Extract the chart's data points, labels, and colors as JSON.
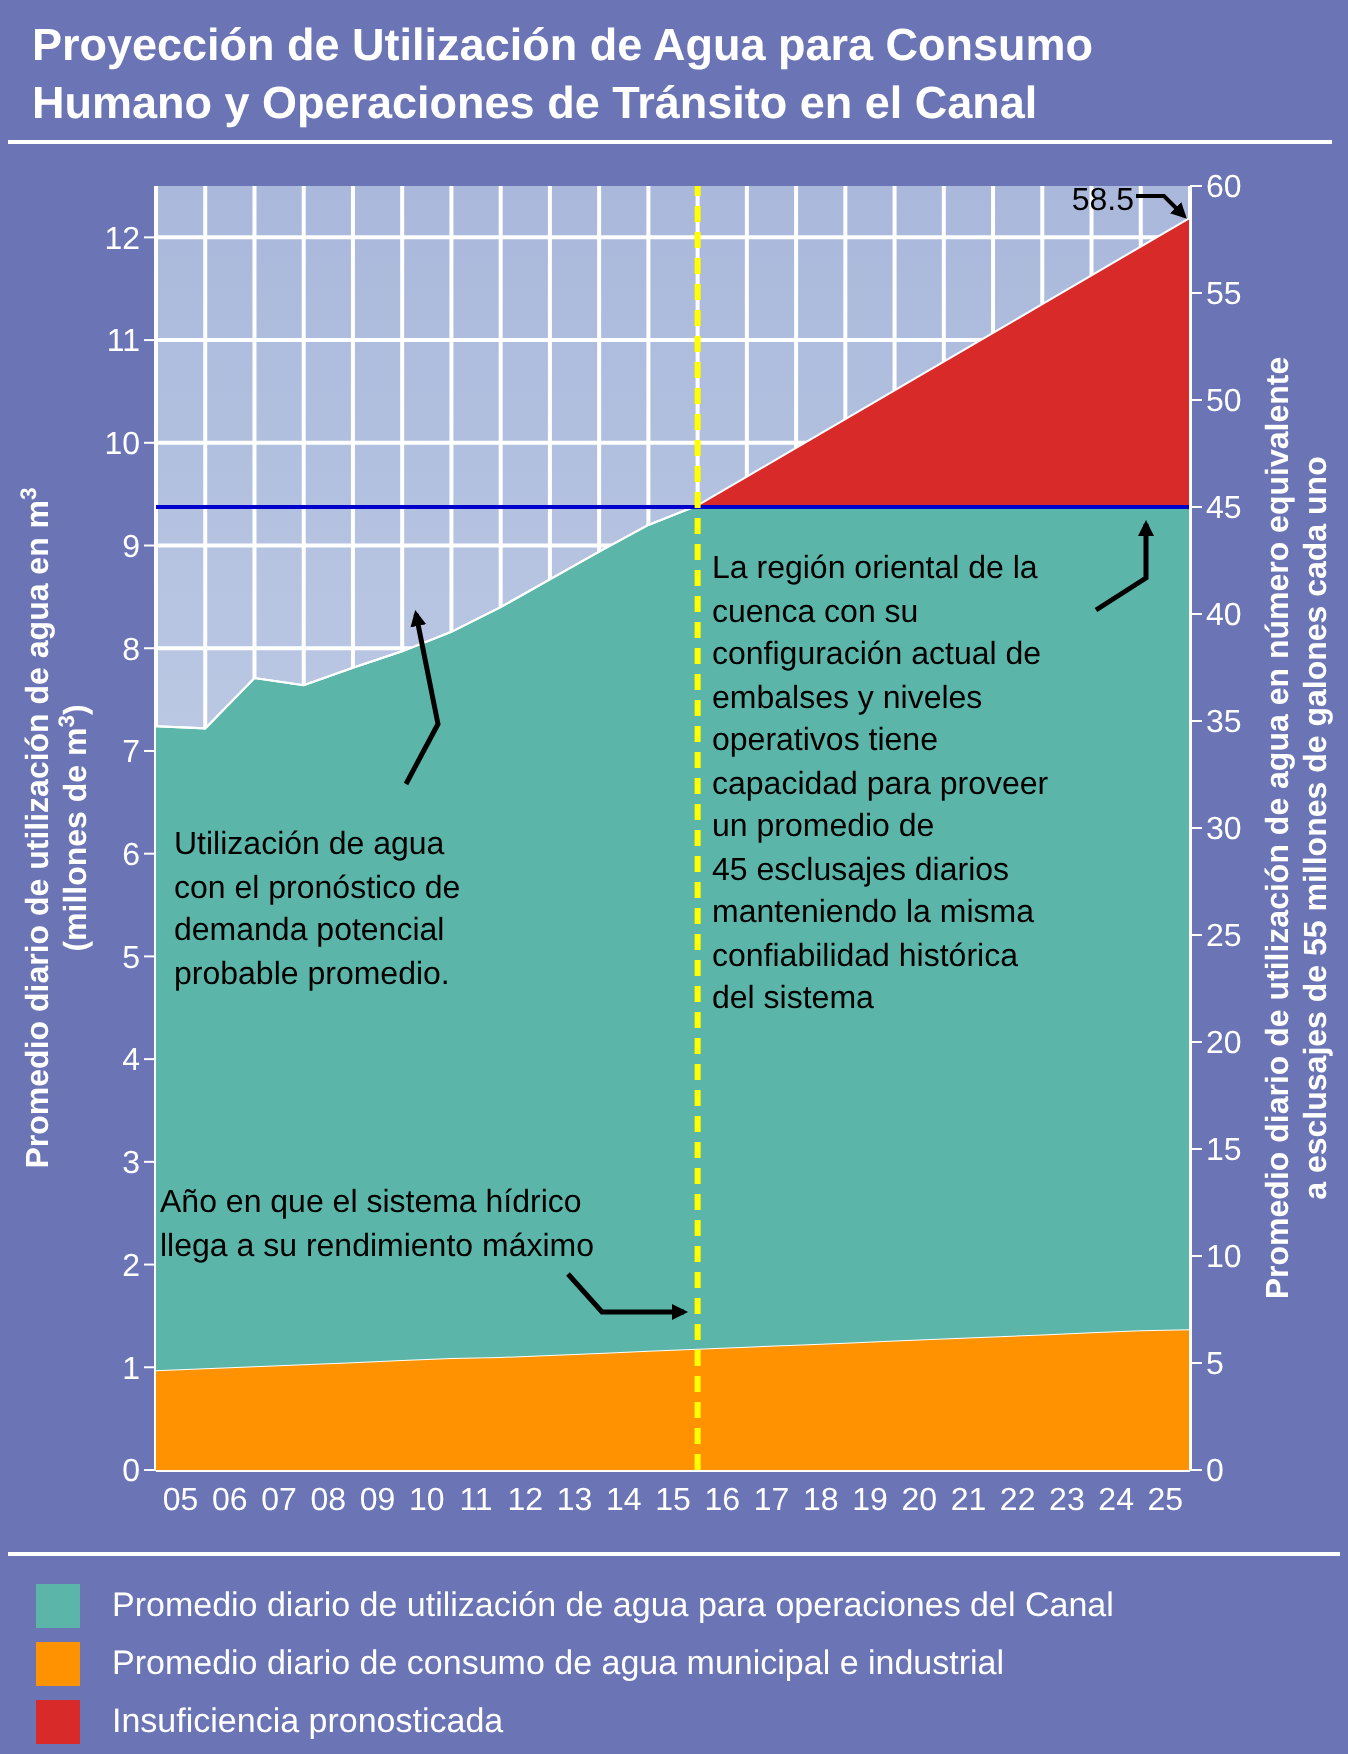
{
  "chart_data": {
    "type": "area",
    "title": "Proyección de Utilización de Agua para Consumo\nHumano y Operaciones de Tránsito en el Canal",
    "ylabel": "Promedio diario de utilización de agua en m$^{3}$\n(millones de m$^{3}$)",
    "y2label": "Promedio diario de utilización de agua en número equivalente\na esclusajes de 55 millones de galones cada uno",
    "x": [
      4.5,
      5.5,
      6.5,
      7.5,
      8.5,
      9.5,
      10.5,
      11.5,
      12.5,
      13.5,
      14.5,
      15.5,
      16.5,
      17.5,
      18.5,
      19.5,
      20.5,
      21.5,
      22.5,
      23.5,
      24.5,
      25.5
    ],
    "stacked": true,
    "series": [
      {
        "name": "Promedio diario de consumo de agua municipal e industrial",
        "color": "#ff9200",
        "values": [
          0.97,
          0.99,
          1.01,
          1.03,
          1.05,
          1.07,
          1.09,
          1.1,
          1.12,
          1.14,
          1.16,
          1.18,
          1.2,
          1.22,
          1.24,
          1.26,
          1.28,
          1.3,
          1.32,
          1.34,
          1.36,
          1.37
        ]
      },
      {
        "name": "Promedio diario de utilización de agua para operaciones del Canal",
        "color": "#5bb5a8",
        "values": [
          6.27,
          6.23,
          6.7,
          6.61,
          6.76,
          6.9,
          7.07,
          7.3,
          7.55,
          7.8,
          8.04,
          8.21,
          8.19,
          8.17,
          8.15,
          8.13,
          8.11,
          8.09,
          8.07,
          8.05,
          8.03,
          8.02
        ]
      },
      {
        "name": "Insuficiencia pronosticada",
        "color": "#d92a2a",
        "values": [
          0,
          0,
          0,
          0,
          0,
          0,
          0,
          0,
          0,
          0,
          0,
          0,
          0.28,
          0.56,
          0.84,
          1.12,
          1.4,
          1.68,
          1.96,
          2.24,
          2.52,
          2.8
        ]
      }
    ],
    "xlim": [
      4.5,
      25.5
    ],
    "xticks": [
      {
        "value": 5,
        "label": "05"
      },
      {
        "value": 6,
        "label": "06"
      },
      {
        "value": 7,
        "label": "07"
      },
      {
        "value": 8,
        "label": "08"
      },
      {
        "value": 9,
        "label": "09"
      },
      10,
      11,
      12,
      13,
      14,
      15,
      16,
      17,
      18,
      19,
      20,
      21,
      22,
      23,
      24,
      25
    ],
    "ylim": [
      0,
      12.5
    ],
    "yticks": [
      0,
      1,
      2,
      3,
      4,
      5,
      6,
      7,
      8,
      9,
      10,
      11,
      12
    ],
    "y2lim": [
      0,
      60
    ],
    "y2ticks": [
      0,
      5,
      10,
      15,
      20,
      25,
      30,
      35,
      40,
      45,
      50,
      55,
      60
    ],
    "ref_lines": [
      {
        "axis": "y2",
        "value": 45,
        "color": "#0000cc",
        "line_style": "solid"
      },
      {
        "axis": "x",
        "value": 15.5,
        "color": "#ffff00",
        "line_style": "dashed"
      }
    ],
    "annotations": [
      "58.5",
      "Utilización de agua\ncon el pronóstico de\ndemanda potencial\nprobable promedio.",
      "La región oriental de la\ncuenca con su\nconfiguración actual de\nembalses y niveles\noperativos tiene\ncapacidad para proveer\nun promedio de\n45 esclusajes diarios\nmanteniendo la misma\nconfiabilidad histórica\ndel sistema",
      "Año en que el sistema hídrico\nllega a su rendimiento máximo"
    ],
    "grid": true,
    "legend": "bottom"
  }
}
